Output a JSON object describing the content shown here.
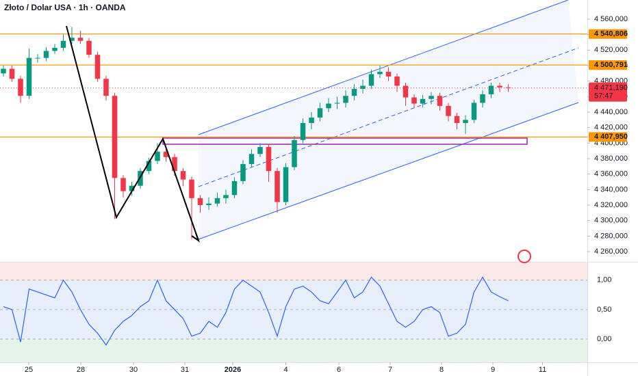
{
  "chart_data": [
    {
      "type": "candlestick",
      "title": "Złoto / Dolar USA · 1h · OANDA",
      "up_color": "#089981",
      "down_color": "#f23645",
      "xlim": [
        -0.4,
        68.24
      ],
      "xticks": [
        {
          "value": 2.96,
          "label": "25"
        },
        {
          "value": 9.04,
          "label": "28"
        },
        {
          "value": 15.2,
          "label": "30"
        },
        {
          "value": 21.2,
          "label": "31"
        },
        {
          "value": 26.8,
          "label": "2026"
        },
        {
          "value": 33,
          "label": "4"
        },
        {
          "value": 39.2,
          "label": "6"
        },
        {
          "value": 45.2,
          "label": "7"
        },
        {
          "value": 51.2,
          "label": "8"
        },
        {
          "value": 57.2,
          "label": "9"
        },
        {
          "value": 63,
          "label": "11"
        }
      ],
      "ylim": [
        4246.8,
        4584.7
      ],
      "yticks": [
        {
          "value": 4260,
          "label": "4 260,000"
        },
        {
          "value": 4280,
          "label": "4 280,000"
        },
        {
          "value": 4300,
          "label": "4 300,000"
        },
        {
          "value": 4320,
          "label": "4 320,000"
        },
        {
          "value": 4340,
          "label": "4 340,000"
        },
        {
          "value": 4360,
          "label": "4 360,000"
        },
        {
          "value": 4380,
          "label": "4 380,000"
        },
        {
          "value": 4400,
          "label": "4 400,000"
        },
        {
          "value": 4420,
          "label": "4 420,000"
        },
        {
          "value": 4440,
          "label": "4 440,000"
        },
        {
          "value": 4460,
          "label": "4 460,000"
        },
        {
          "value": 4480,
          "label": "4 480,000"
        },
        {
          "value": 4500,
          "label": "4 500,000"
        },
        {
          "value": 4520,
          "label": "4 520,000"
        },
        {
          "value": 4540,
          "label": "4 540,000"
        },
        {
          "value": 4560,
          "label": "4 560,000"
        }
      ],
      "levels": [
        {
          "value": 4540.806,
          "label": "4 540,806"
        },
        {
          "value": 4500.791,
          "label": "4 500,791"
        },
        {
          "value": 4407.95,
          "label": "4 407,950"
        }
      ],
      "level_color": "#ff9800",
      "last_price": {
        "value": 4471.19,
        "label": "4 471,190"
      },
      "countdown": "57:47",
      "open": [
        4490,
        4496,
        4483,
        4461,
        4510,
        4510,
        4519,
        4523,
        4532,
        4536,
        4532,
        4514,
        4483,
        4461,
        4355,
        4338,
        4345,
        4364,
        4377,
        4389,
        4382,
        4364,
        4353,
        4329,
        4320,
        4322,
        4329,
        4333,
        4351,
        4373,
        4386,
        4395,
        4364,
        4324,
        4369,
        4404,
        4426,
        4433,
        4445,
        4451,
        4452,
        4461,
        4470,
        4474,
        4489,
        4492,
        4486,
        4474,
        4459,
        4451,
        4457,
        4461,
        4448,
        4435,
        4426,
        4430,
        4452,
        4463,
        4474,
        4472
      ],
      "high": [
        4500,
        4500,
        4487,
        4522,
        4515,
        4524,
        4528,
        4540,
        4550,
        4545,
        4536,
        4518,
        4487,
        4465,
        4359,
        4350,
        4368,
        4381,
        4400,
        4393,
        4386,
        4368,
        4357,
        4333,
        4330,
        4336,
        4340,
        4356,
        4378,
        4392,
        4400,
        4399,
        4368,
        4374,
        4409,
        4432,
        4440,
        4452,
        4458,
        4460,
        4468,
        4476,
        4482,
        4495,
        4500,
        4498,
        4490,
        4478,
        4463,
        4462,
        4466,
        4465,
        4452,
        4439,
        4436,
        4456,
        4468,
        4478,
        4478,
        4476
      ],
      "low": [
        4486,
        4479,
        4452,
        4457,
        4504,
        4506,
        4515,
        4519,
        4528,
        4528,
        4510,
        4479,
        4455,
        4302,
        4330,
        4332,
        4341,
        4360,
        4373,
        4376,
        4358,
        4345,
        4276,
        4310,
        4314,
        4318,
        4322,
        4329,
        4347,
        4369,
        4382,
        4350,
        4310,
        4320,
        4365,
        4400,
        4418,
        4428,
        4440,
        4444,
        4446,
        4455,
        4464,
        4470,
        4484,
        4480,
        4466,
        4448,
        4445,
        4446,
        4450,
        4442,
        4428,
        4418,
        4412,
        4426,
        4446,
        4458,
        4466,
        4466
      ],
      "close": [
        4496,
        4483,
        4461,
        4510,
        4510,
        4519,
        4523,
        4532,
        4536,
        4532,
        4514,
        4483,
        4461,
        4355,
        4338,
        4345,
        4364,
        4377,
        4389,
        4382,
        4364,
        4353,
        4329,
        4320,
        4322,
        4329,
        4333,
        4351,
        4373,
        4386,
        4395,
        4364,
        4324,
        4369,
        4404,
        4426,
        4433,
        4445,
        4451,
        4452,
        4461,
        4470,
        4474,
        4489,
        4492,
        4486,
        4474,
        4459,
        4451,
        4457,
        4461,
        4448,
        4435,
        4426,
        4430,
        4452,
        4463,
        4474,
        4472,
        4471.19
      ]
    },
    {
      "type": "line",
      "color": "#2962ff",
      "ylim": [
        -0.395,
        1.3
      ],
      "yticks": [
        {
          "value": 1,
          "label": "1,00"
        },
        {
          "value": 0.5,
          "label": "0,50"
        },
        {
          "value": 0,
          "label": "0,00"
        }
      ],
      "values": [
        0.55,
        0.5,
        -0.05,
        0.85,
        0.8,
        0.75,
        0.7,
        1.0,
        0.8,
        0.5,
        0.25,
        0.1,
        -0.1,
        0.15,
        0.3,
        0.4,
        0.55,
        0.65,
        1.0,
        0.65,
        0.5,
        0.35,
        0.05,
        0.1,
        0.3,
        0.2,
        0.45,
        0.85,
        1.0,
        0.9,
        0.8,
        0.45,
        0.05,
        0.55,
        0.85,
        0.9,
        0.8,
        0.65,
        0.6,
        0.8,
        1.0,
        0.7,
        0.8,
        1.05,
        0.9,
        0.6,
        0.3,
        0.2,
        0.3,
        0.5,
        0.55,
        0.45,
        0.05,
        0.1,
        0.25,
        0.8,
        1.05,
        0.8,
        0.72,
        0.65
      ]
    }
  ]
}
